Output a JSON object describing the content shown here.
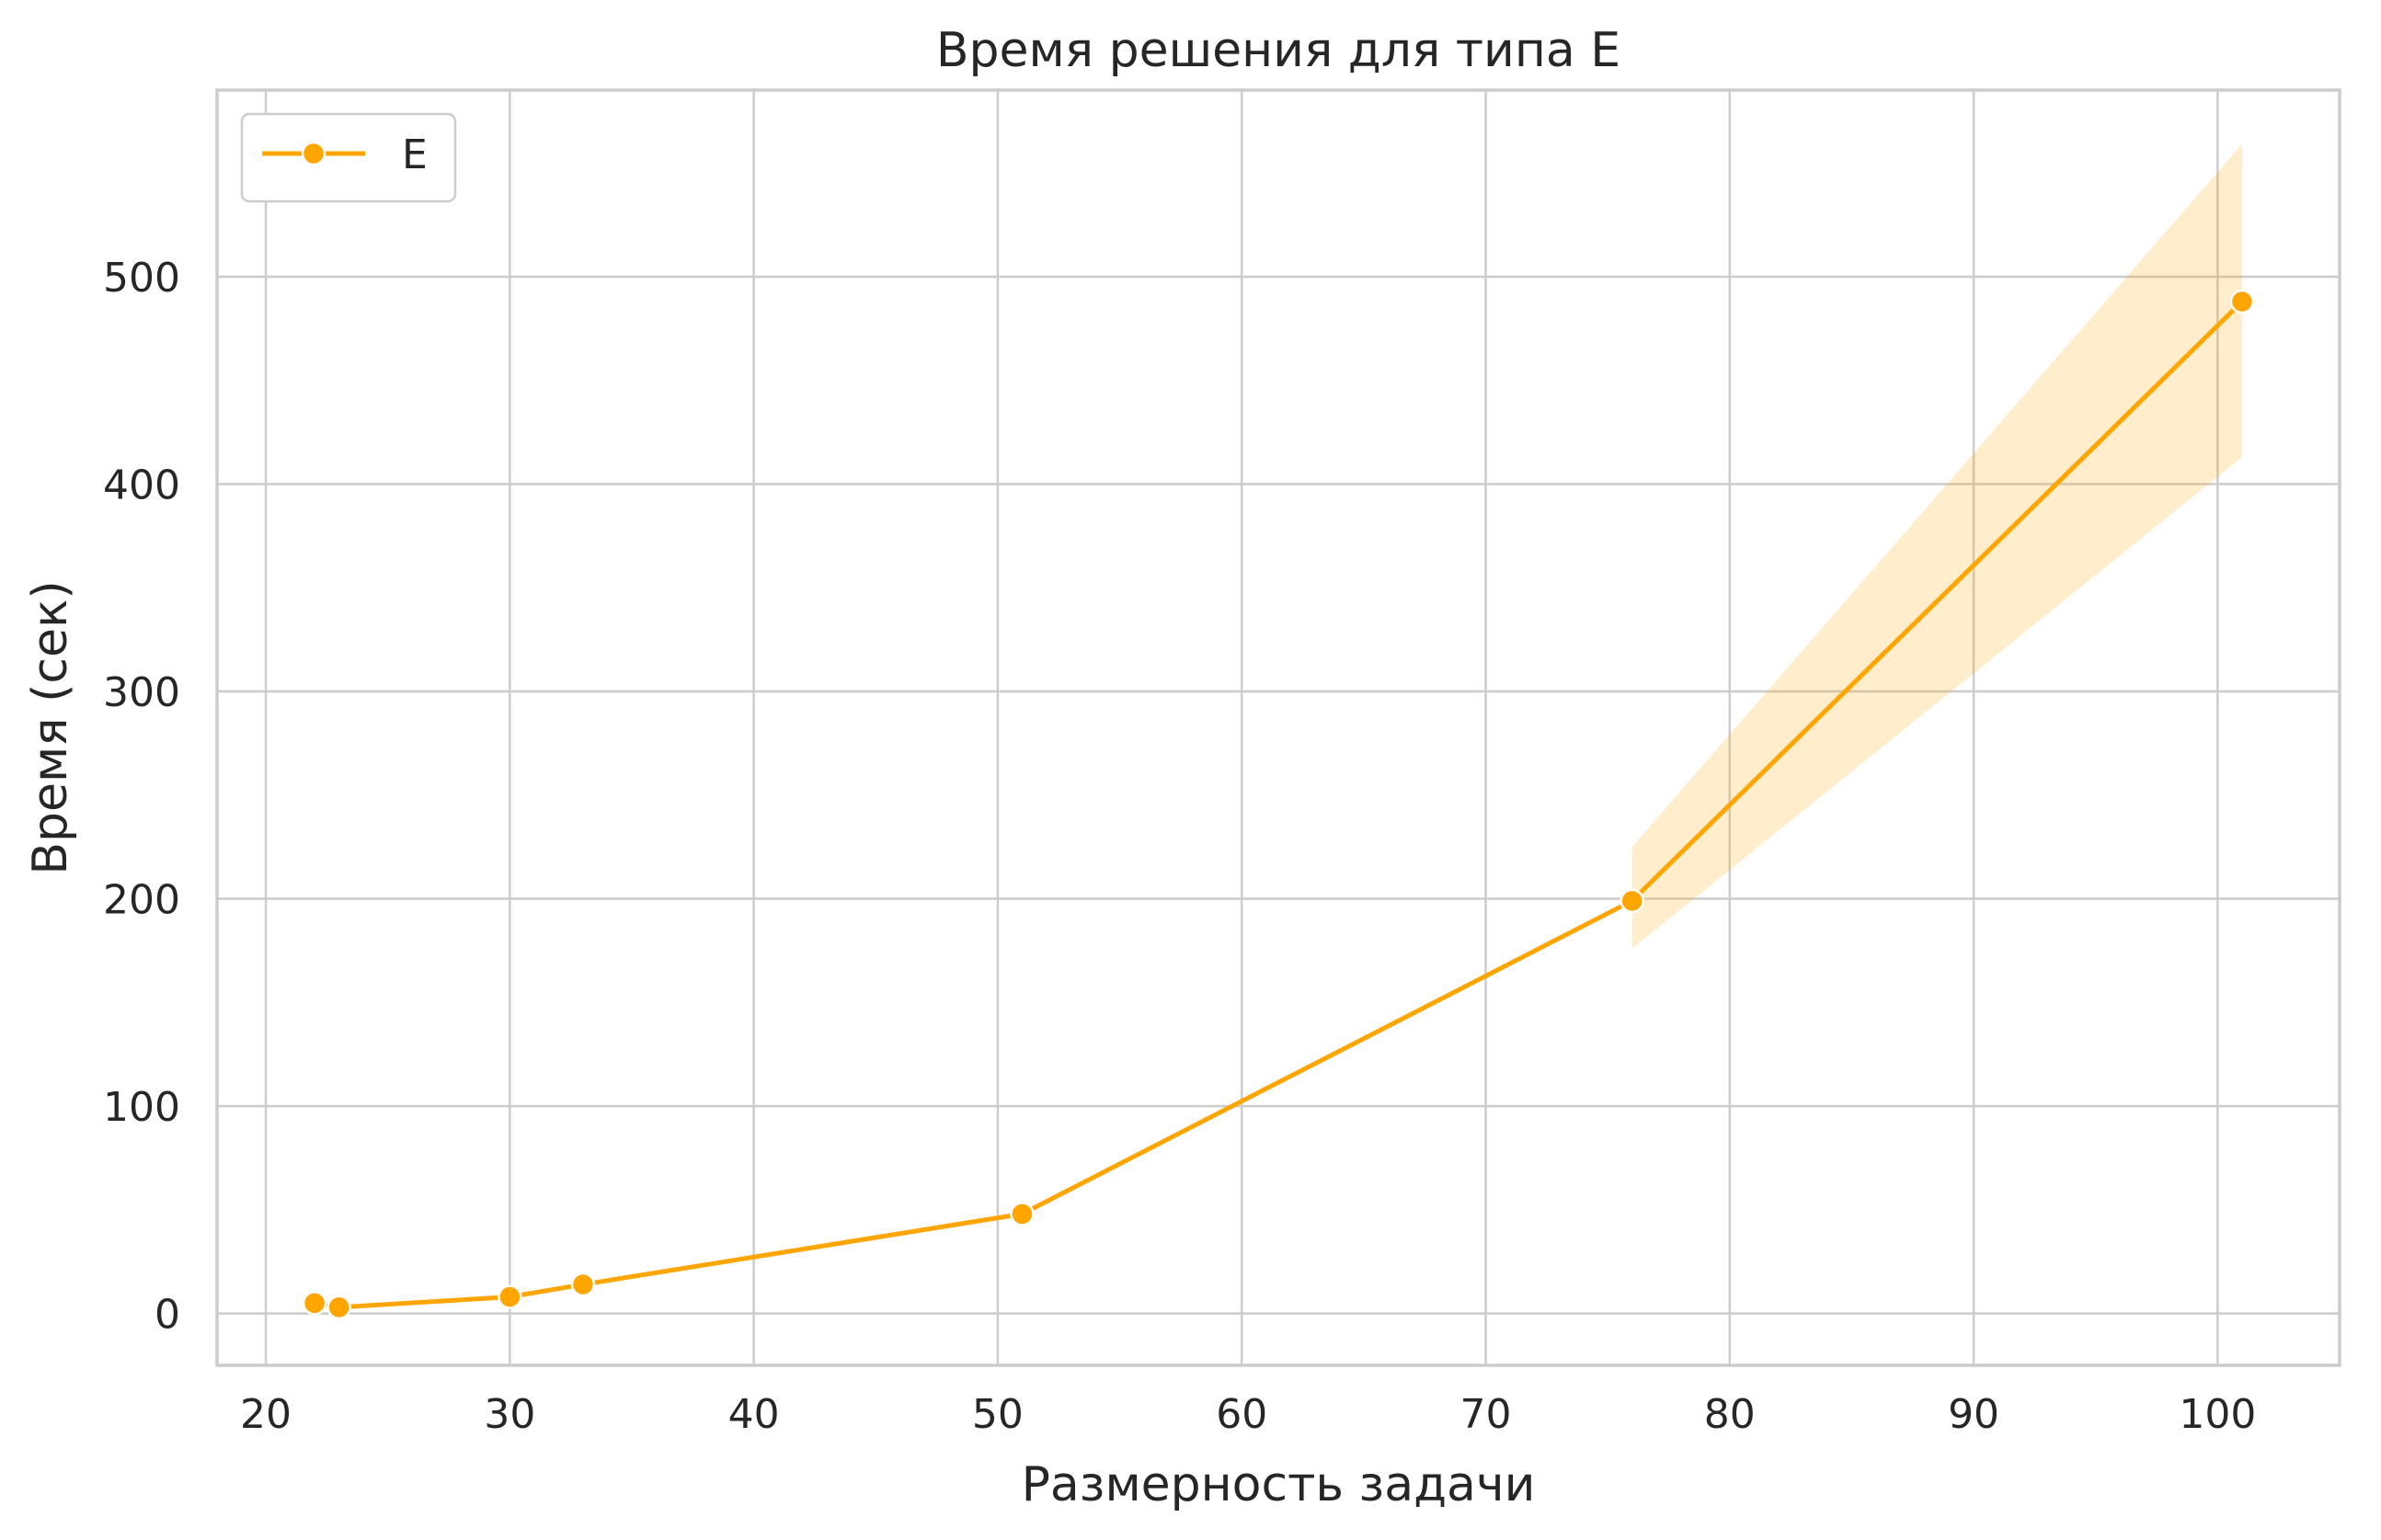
{
  "chart_data": {
    "type": "line",
    "title": "Время решения для типа E",
    "xlabel": "Размерность задачи",
    "ylabel": "Время (сек)",
    "xlim": [
      18,
      105
    ],
    "ylim": [
      -25,
      590
    ],
    "xticks": [
      20,
      30,
      40,
      50,
      60,
      70,
      80,
      90,
      100
    ],
    "yticks": [
      0,
      100,
      200,
      300,
      400,
      500
    ],
    "grid": true,
    "legend_position": "top-left",
    "series": [
      {
        "name": "E",
        "color": "#FFA500",
        "marker": "circle",
        "x": [
          22,
          23,
          30,
          33,
          51,
          76,
          101
        ],
        "y": [
          5,
          3,
          8,
          14,
          48,
          199,
          488
        ],
        "ci_lower": [
          5,
          3,
          8,
          14,
          48,
          176,
          413
        ],
        "ci_upper": [
          5,
          3,
          8,
          14,
          48,
          225,
          564
        ]
      }
    ]
  }
}
